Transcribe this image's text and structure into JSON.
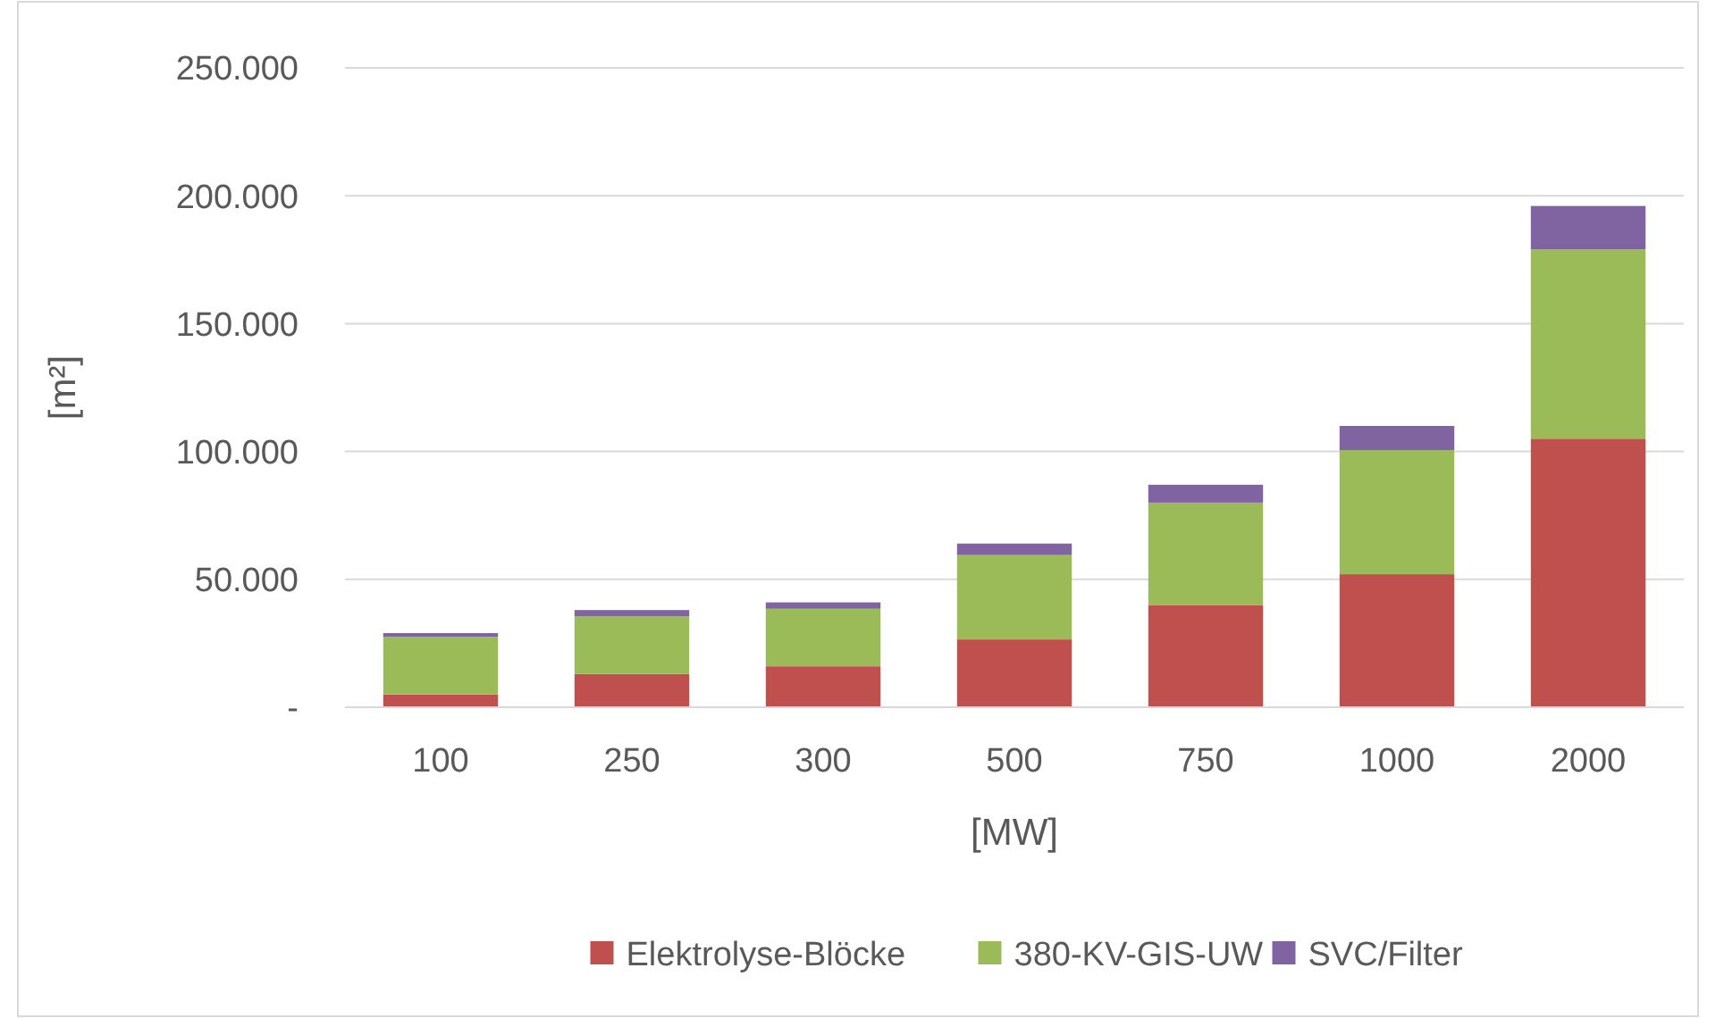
{
  "chart_data": {
    "type": "bar",
    "stacked": true,
    "xlabel": "[MW]",
    "ylabel": "[m²]",
    "categories": [
      "100",
      "250",
      "300",
      "500",
      "750",
      "1000",
      "2000"
    ],
    "series": [
      {
        "name": "Elektrolyse-Blöcke",
        "color": "#c0504d",
        "values": [
          5000,
          13000,
          16000,
          26500,
          40000,
          52000,
          105000
        ]
      },
      {
        "name": "380-KV-GIS-UW",
        "color": "#9bbb59",
        "values": [
          22500,
          22500,
          22500,
          33000,
          40000,
          48500,
          74000
        ]
      },
      {
        "name": "SVC/Filter",
        "color": "#8064a2",
        "values": [
          1500,
          2500,
          2500,
          4500,
          7000,
          9500,
          17000
        ]
      }
    ],
    "ylim": [
      0,
      250000
    ],
    "yticks": [
      {
        "value": 0,
        "label": "-"
      },
      {
        "value": 50000,
        "label": "50.000"
      },
      {
        "value": 100000,
        "label": "100.000"
      },
      {
        "value": 150000,
        "label": "150.000"
      },
      {
        "value": 200000,
        "label": "200.000"
      },
      {
        "value": 250000,
        "label": "250.000"
      }
    ],
    "grid": "y",
    "legend": "bottom"
  }
}
